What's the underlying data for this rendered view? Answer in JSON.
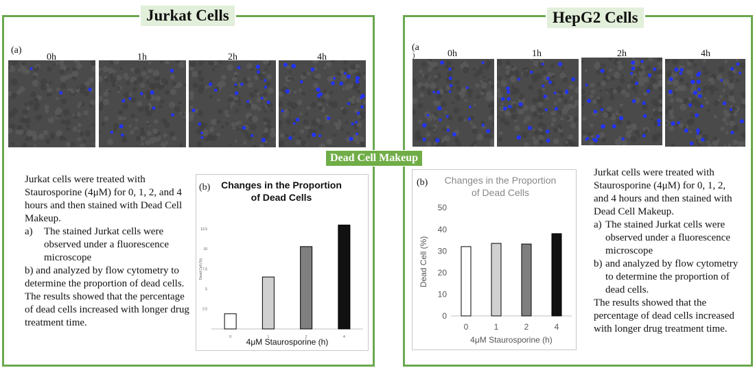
{
  "left": {
    "title": "Jurkat Cells",
    "part_a_label": "(a)",
    "timepoints": [
      "0h",
      "1h",
      "2h",
      "4h"
    ],
    "text_intro": "Jurkat cells were treated with Staurosporine (4μM) for 0, 1, 2, and 4 hours and then stained with Dead Cell Makeup.",
    "text_a_marker": "a)",
    "text_a": "The stained Jurkat cells were observed under a fluorescence microscope",
    "text_b": "b) and analyzed by flow cytometry to determine the proportion of dead cells.",
    "text_result": "The results showed that the percentage of dead cells increased with longer drug treatment time.",
    "chart_part_label": "(b)"
  },
  "right": {
    "title": "HepG2 Cells",
    "part_a_label": "(a",
    "part_a_extra": ")",
    "timepoints": [
      "0h",
      "1h",
      "2h",
      "4h"
    ],
    "text_intro": "Jurkat cells were treated with Staurosporine (4μM) for 0, 1, 2, and 4 hours and then stained with Dead Cell Makeup.",
    "text_a_marker": "a)",
    "text_a": "The stained Jurkat cells were observed under a fluorescence microscope",
    "text_b_marker": "b)",
    "text_b": "and analyzed by flow cytometry to determine the proportion of dead cells.",
    "text_result": "The results showed that the percentage of dead cells increased with longer drug treatment time.",
    "chart_part_label": "(b)"
  },
  "center_label": "Dead Cell Makeup",
  "colors": {
    "panel_border": "#6aa84f",
    "title_bg": "#e2efda",
    "center_label_bg": "#70ad47",
    "bar_fills": [
      "#ffffff",
      "#d0d0d0",
      "#7f7f7f",
      "#111111"
    ],
    "micro_bg": "#4a4a4a",
    "nucleus_blue": "#2233ff"
  },
  "chart_data": [
    {
      "type": "bar",
      "title": "Changes in the Proportion of Dead Cells",
      "categories": [
        "0",
        "1",
        "2",
        "4"
      ],
      "values": [
        1.9,
        6.5,
        10.3,
        13.0
      ],
      "xlabel": "4μM Staurosporine (h)",
      "ylabel": "Dead Cell (%)",
      "ylim": [
        0,
        15
      ],
      "yticks": [
        "2.5",
        "5",
        "7.5",
        "10",
        "12.5"
      ],
      "grid": false,
      "legend": "none"
    },
    {
      "type": "bar",
      "title": "Changes in the Proportion of Dead Cells",
      "categories": [
        "0",
        "1",
        "2",
        "4"
      ],
      "values": [
        32,
        33.5,
        33.2,
        38
      ],
      "xlabel": "4μM Staurosporine (h)",
      "ylabel": "Dead Cell (%)",
      "ylim": [
        0,
        50
      ],
      "yticks": [
        "0",
        "10",
        "20",
        "30",
        "40",
        "50"
      ],
      "grid": false,
      "legend": "none"
    }
  ]
}
